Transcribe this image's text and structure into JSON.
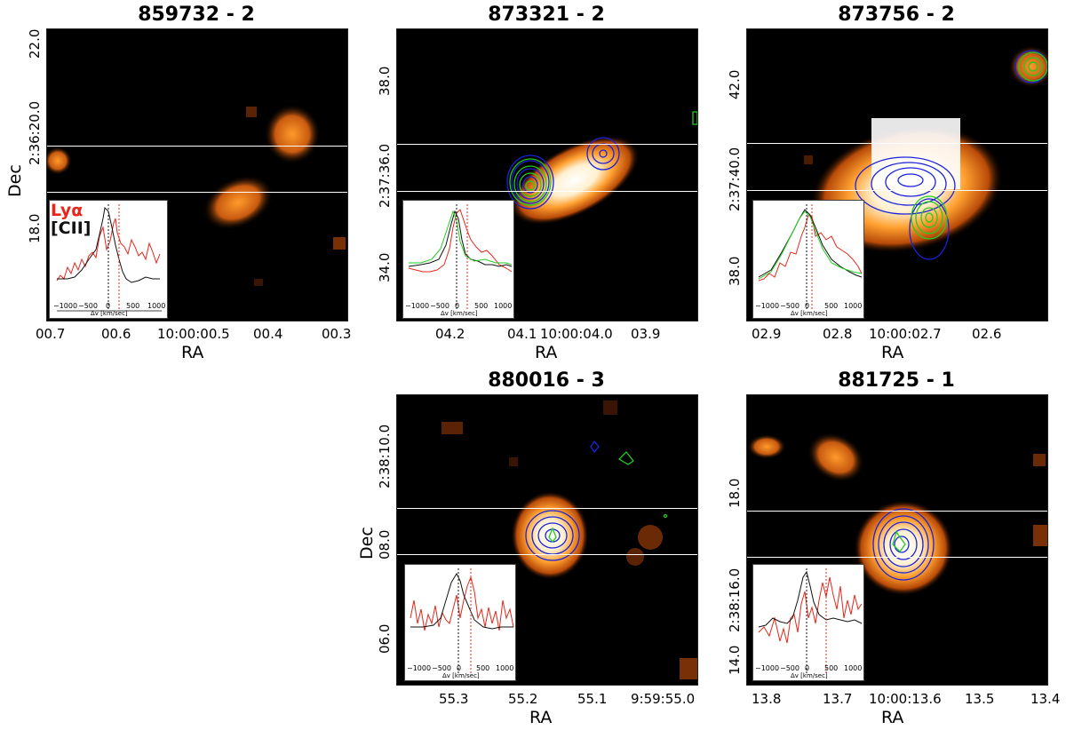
{
  "panels": [
    {
      "title": "859732 - 2",
      "ra_label": "RA",
      "dec_label": "Dec",
      "ra_ticks": [
        "00.7",
        "00.6",
        "10:00:00.5",
        "00.4",
        "00.3"
      ],
      "dec_ticks": [
        "22.0",
        "2:36:20.0",
        "18.0"
      ],
      "inset_xticks": [
        "−1000",
        "−500",
        "0",
        "500",
        "1000"
      ],
      "inset_xlabel": "Δv [km/sec]",
      "legend": [
        "Lyα",
        "[CII]"
      ]
    },
    {
      "title": "873321 - 2",
      "ra_label": "RA",
      "ra_ticks": [
        "04.2",
        "04.1",
        "10:00:04.0",
        "03.9"
      ],
      "dec_ticks": [
        "38.0",
        "2:37:36.0",
        "34.0"
      ],
      "inset_xticks": [
        "−1000",
        "−500",
        "0",
        "500",
        "1000"
      ],
      "inset_xlabel": "Δv [km/sec]"
    },
    {
      "title": "873756 - 2",
      "ra_label": "RA",
      "ra_ticks": [
        "02.9",
        "02.8",
        "10:00:02.7",
        "02.6"
      ],
      "dec_ticks": [
        "42.0",
        "2:37:40.0",
        "38.0"
      ],
      "inset_xticks": [
        "−1000",
        "−500",
        "0",
        "500",
        "1000"
      ],
      "inset_xlabel": "Δv [km/sec]"
    },
    {
      "title": "880016 - 3",
      "ra_label": "RA",
      "dec_label": "Dec",
      "ra_ticks": [
        "55.3",
        "55.2",
        "55.1",
        "9:59:55.0"
      ],
      "dec_ticks": [
        "2:38:10.0",
        "08.0",
        "06.0"
      ],
      "inset_xticks": [
        "−1000",
        "−500",
        "0",
        "500",
        "1000"
      ],
      "inset_xlabel": "Δv [km/sec]"
    },
    {
      "title": "881725 - 1",
      "ra_label": "RA",
      "ra_ticks": [
        "13.8",
        "13.7",
        "10:00:13.6",
        "13.5",
        "13.4"
      ],
      "dec_ticks": [
        "18.0",
        "2:38:16.0",
        "14.0"
      ],
      "inset_xticks": [
        "−1000",
        "−500",
        "0",
        "500",
        "1000"
      ],
      "inset_xlabel": "Δv [km/sec]"
    }
  ],
  "colors": {
    "lya": "#e8261c",
    "cii": "#111111",
    "green": "#22cc22",
    "blue": "#1a22dd"
  }
}
